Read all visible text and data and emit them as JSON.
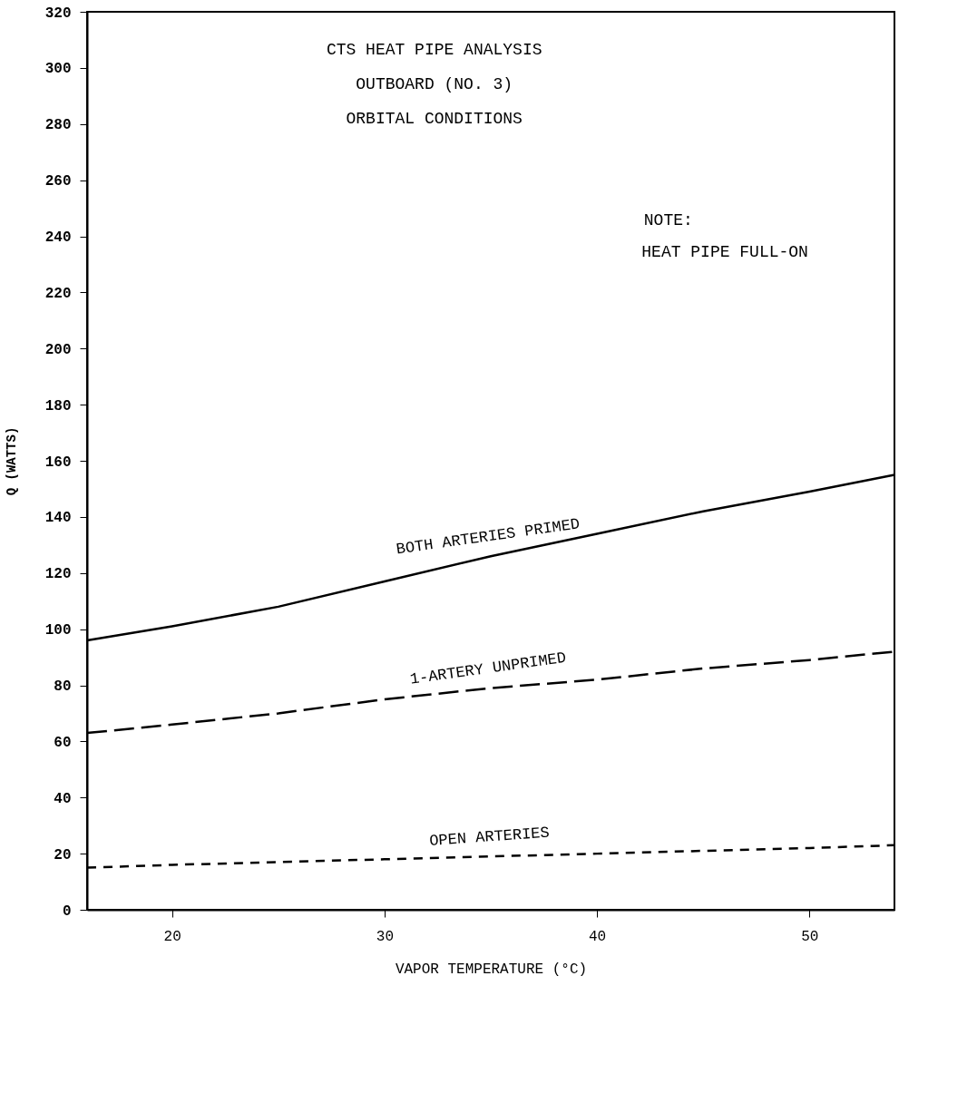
{
  "chart_data": {
    "type": "line",
    "title": "CTS HEAT PIPE ANALYSIS",
    "xlabel": "VAPOR TEMPERATURE (°C)",
    "ylabel": "Q (WATTS)",
    "annotations": [
      "OUTBOARD (NO. 3)",
      "ORBITAL CONDITIONS",
      "NOTE:",
      "HEAT PIPE FULL-ON"
    ],
    "xlim": [
      16,
      54
    ],
    "xticks": [
      20,
      30,
      40,
      50
    ],
    "ylim": [
      0,
      320
    ],
    "yticks": [
      0,
      20,
      40,
      60,
      80,
      100,
      120,
      140,
      160,
      180,
      200,
      220,
      240,
      260,
      280,
      300,
      320
    ],
    "grid": false,
    "series": [
      {
        "name": "BOTH ARTERIES PRIMED",
        "color": "#000000",
        "line_style": "solid",
        "x": [
          16,
          20,
          25,
          30,
          35,
          40,
          45,
          50,
          54
        ],
        "values": [
          96,
          101,
          108,
          117,
          126,
          134,
          142,
          149,
          155
        ]
      },
      {
        "name": "1-ARTERY UNPRIMED",
        "color": "#000000",
        "line_style": "dashed",
        "x": [
          16,
          20,
          25,
          30,
          35,
          40,
          45,
          50,
          54
        ],
        "values": [
          63,
          66,
          70,
          75,
          79,
          82,
          86,
          89,
          92
        ]
      },
      {
        "name": "OPEN ARTERIES",
        "color": "#000000",
        "line_style": "dotted",
        "x": [
          16,
          20,
          25,
          30,
          35,
          40,
          45,
          50,
          54
        ],
        "values": [
          15,
          16,
          17,
          18,
          19,
          20,
          21,
          22,
          23
        ]
      }
    ]
  }
}
